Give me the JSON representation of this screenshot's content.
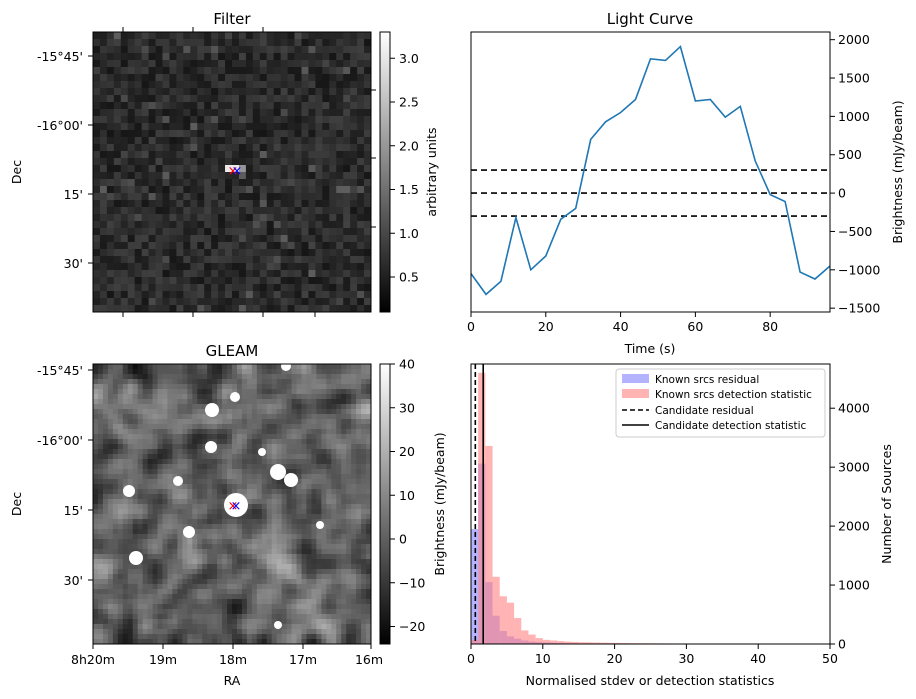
{
  "chart_data": [
    {
      "type": "heatmap",
      "title": "Filter",
      "ylabel": "Dec",
      "y_ticks": [
        "-15°45'",
        "-16°00'",
        "15'",
        "30'"
      ],
      "colorbar": {
        "label": "arbitrary units",
        "range": [
          0.1,
          3.3
        ],
        "ticks": [
          "0.5",
          "1.0",
          "1.5",
          "2.0",
          "2.5",
          "3.0"
        ]
      },
      "markers": [
        {
          "symbol": "x",
          "color": "#ff0000"
        },
        {
          "symbol": "x",
          "color": "#0000ff"
        }
      ]
    },
    {
      "type": "line",
      "title": "Light Curve",
      "xlabel": "Time (s)",
      "ylabel": "Brightness (mJy/beam)",
      "xlim": [
        0,
        96
      ],
      "ylim": [
        -1550,
        2100
      ],
      "x_ticks": [
        0,
        20,
        40,
        60,
        80
      ],
      "y_ticks": [
        -1500,
        -1000,
        -500,
        0,
        500,
        1000,
        1500,
        2000
      ],
      "series": [
        {
          "x": [
            0,
            4,
            8,
            12,
            16,
            20,
            24,
            28,
            32,
            36,
            40,
            44,
            48,
            52,
            56,
            60,
            64,
            68,
            72,
            76,
            80,
            84,
            88,
            92,
            96
          ],
          "values": [
            -1050,
            -1320,
            -1150,
            -320,
            -1000,
            -820,
            -340,
            -200,
            700,
            930,
            1050,
            1220,
            1750,
            1730,
            1910,
            1200,
            1220,
            990,
            1130,
            420,
            -20,
            -110,
            -1030,
            -1120,
            -950
          ],
          "color": "#1f77b4"
        }
      ],
      "hlines": [
        {
          "y": 300,
          "style": "dashed"
        },
        {
          "y": 0,
          "style": "dashed"
        },
        {
          "y": -300,
          "style": "dashed"
        }
      ]
    },
    {
      "type": "heatmap",
      "title": "GLEAM",
      "xlabel": "RA",
      "ylabel": "Dec",
      "x_ticks": [
        "8h20m",
        "19m",
        "18m",
        "17m",
        "16m"
      ],
      "y_ticks": [
        "-15°45'",
        "-16°00'",
        "15'",
        "30'"
      ],
      "colorbar": {
        "label": "Brightness (mJy/beam)",
        "range": [
          -24,
          40
        ],
        "ticks": [
          "−20",
          "−10",
          "0",
          "10",
          "20",
          "30",
          "40"
        ]
      },
      "markers": [
        {
          "symbol": "x",
          "color": "#ff0000"
        },
        {
          "symbol": "x",
          "color": "#0000ff"
        }
      ]
    },
    {
      "type": "bar",
      "xlabel": "Normalised stdev or detection statistics",
      "ylabel": "Number of Sources",
      "xlim": [
        0,
        50
      ],
      "ylim": [
        0,
        4750
      ],
      "x_ticks": [
        0,
        10,
        20,
        30,
        40,
        50
      ],
      "y_ticks": [
        0,
        1000,
        2000,
        3000,
        4000
      ],
      "bin_width": 1,
      "series": [
        {
          "name": "Known srcs residual",
          "color": "#8080ff",
          "bins_from": 0,
          "values": [
            1950,
            3060,
            1050,
            480,
            220,
            130,
            90,
            60,
            40,
            30,
            25,
            20,
            15,
            12,
            10,
            8,
            6,
            5,
            4,
            3
          ]
        },
        {
          "name": "Known srcs detection statistic",
          "color": "#ff8080",
          "bins_from": 0,
          "values": [
            70,
            4600,
            3360,
            1140,
            810,
            700,
            440,
            230,
            160,
            100,
            70,
            60,
            50,
            40,
            35,
            30,
            28,
            25,
            22,
            20,
            18,
            16,
            14,
            13,
            12,
            11,
            10,
            9,
            8,
            8,
            7,
            7,
            6,
            6,
            5,
            5,
            5,
            4,
            4,
            4,
            3,
            3,
            3,
            3,
            3,
            2,
            2,
            2,
            2,
            2
          ]
        }
      ],
      "vlines": [
        {
          "name": "Candidate residual",
          "x": 0.6,
          "style": "dashed",
          "color": "#000000"
        },
        {
          "name": "Candidate detection statistic",
          "x": 1.7,
          "style": "solid",
          "color": "#000000"
        }
      ],
      "legend": "top-right"
    }
  ]
}
